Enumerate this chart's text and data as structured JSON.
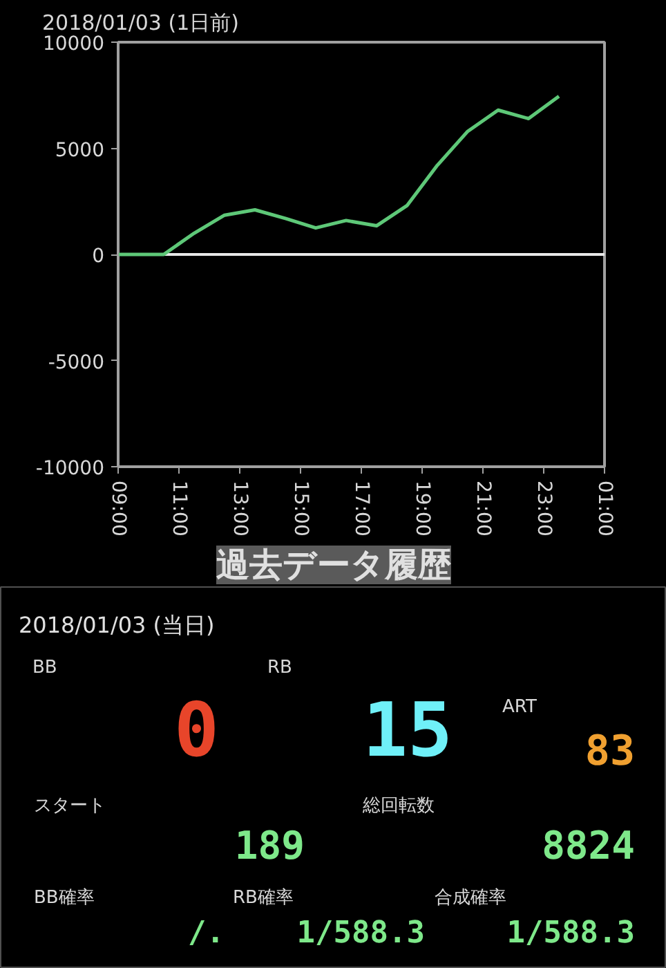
{
  "chart_data": [
    {
      "type": "line",
      "title": "2018/01/03 (1日前)",
      "x": [
        "2018-01-03T09:00",
        "2018-01-03T10:30",
        "2018-01-03T11:30",
        "2018-01-03T12:30",
        "2018-01-03T13:30",
        "2018-01-03T14:30",
        "2018-01-03T15:30",
        "2018-01-03T16:30",
        "2018-01-03T17:30",
        "2018-01-03T18:30",
        "2018-01-03T19:30",
        "2018-01-03T20:30",
        "2018-01-03T21:30",
        "2018-01-03T22:30",
        "2018-01-03T23:30"
      ],
      "series": [
        {
          "color": "#5ec878",
          "values": [
            0,
            0,
            1000,
            1850,
            2100,
            1700,
            1250,
            1600,
            1350,
            2300,
            4200,
            5800,
            6800,
            6400,
            7450
          ]
        }
      ],
      "xlim": [
        "2018-01-03T09:00",
        "2018-01-04T01:00"
      ],
      "xticks": [
        {
          "value": "2018-01-03T09:00",
          "label": "09:00"
        },
        {
          "value": "2018-01-03T11:00",
          "label": "11:00"
        },
        {
          "value": "2018-01-03T13:00",
          "label": "13:00"
        },
        {
          "value": "2018-01-03T15:00",
          "label": "15:00"
        },
        {
          "value": "2018-01-03T17:00",
          "label": "17:00"
        },
        {
          "value": "2018-01-03T19:00",
          "label": "19:00"
        },
        {
          "value": "2018-01-03T21:00",
          "label": "21:00"
        },
        {
          "value": "2018-01-03T23:00",
          "label": "23:00"
        },
        {
          "value": "2018-01-04T01:00",
          "label": "01:00"
        }
      ],
      "ylim": [
        -10000,
        10000
      ],
      "yticks": [
        -10000,
        -5000,
        0,
        5000,
        10000
      ],
      "ref_lines": [
        {
          "axis": "y",
          "value": 0,
          "color": "#e8e8e8"
        }
      ],
      "grid": false,
      "marker": "none",
      "line_style": "solid"
    },
    {
      "type": "other",
      "title": "過去データ履歴",
      "subtitle": "2018/01/03 (当日)",
      "annotations": [
        "BB",
        "0",
        "RB",
        "15",
        "ART",
        "83",
        "スタート",
        "189",
        "総回転数",
        "8824",
        "BB確率",
        "/.",
        "RB確率",
        "1/588.3",
        "合成確率",
        "1/588.3"
      ],
      "colors": [
        "#d8d8d8",
        "#e8452a",
        "#d8d8d8",
        "#6ff0f8",
        "#d8d8d8",
        "#f0a030",
        "#d8d8d8",
        "#7ee88a",
        "#d8d8d8",
        "#7ee88a",
        "#d8d8d8",
        "#7ee88a",
        "#d8d8d8",
        "#7ee88a",
        "#d8d8d8",
        "#7ee88a"
      ]
    }
  ]
}
